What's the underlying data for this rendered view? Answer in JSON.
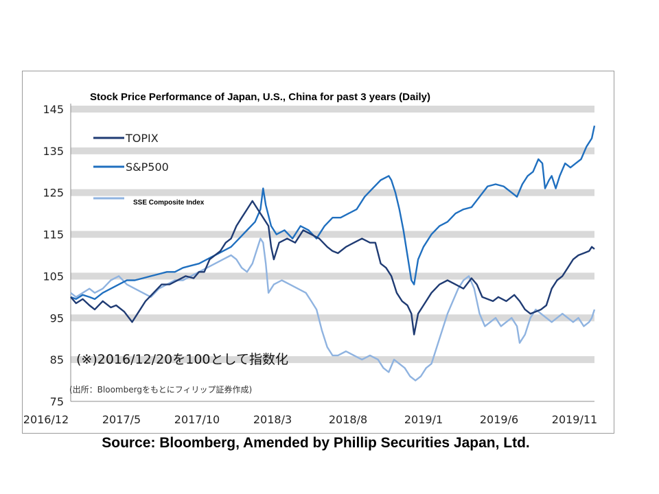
{
  "source_caption": "Source: Bloomberg, Amended by Phillip Securities Japan, Ltd.",
  "chart_data": {
    "type": "line",
    "title": "Stock Price Performance of Japan, U.S., China for past 3 years (Daily)",
    "xlabel": "",
    "ylabel": "",
    "ylim": [
      75,
      145
    ],
    "yticks": [
      "145",
      "135",
      "125",
      "115",
      "105",
      "95",
      "85",
      "75"
    ],
    "xticks": [
      "2016/12",
      "2017/5",
      "2017/10",
      "2018/3",
      "2018/8",
      "2019/1",
      "2019/6",
      "2019/11"
    ],
    "grid": "horizontal bands",
    "legend_position": "top-left",
    "note_main": "(※)2016/12/20を100として指数化",
    "note_source": "(出所：Bloombergをもとにフィリップ証券作成)",
    "series": [
      {
        "name": "TOPIX",
        "color": "#1f3b73",
        "points": [
          [
            0,
            100
          ],
          [
            0.2,
            98.5
          ],
          [
            0.45,
            99.5
          ],
          [
            0.7,
            98
          ],
          [
            0.9,
            97
          ],
          [
            1.2,
            99
          ],
          [
            1.5,
            97.5
          ],
          [
            1.7,
            98
          ],
          [
            2,
            96.5
          ],
          [
            2.3,
            94
          ],
          [
            2.5,
            96
          ],
          [
            2.8,
            99
          ],
          [
            3.1,
            101
          ],
          [
            3.4,
            103
          ],
          [
            3.7,
            103
          ],
          [
            4,
            104
          ],
          [
            4.3,
            105
          ],
          [
            4.6,
            104.5
          ],
          [
            4.8,
            106
          ],
          [
            5,
            106
          ],
          [
            5.2,
            109
          ],
          [
            5.4,
            110
          ],
          [
            5.6,
            111
          ],
          [
            5.8,
            113
          ],
          [
            6,
            114
          ],
          [
            6.2,
            117
          ],
          [
            6.4,
            119
          ],
          [
            6.6,
            121
          ],
          [
            6.8,
            123
          ],
          [
            7,
            121
          ],
          [
            7.2,
            119
          ],
          [
            7.4,
            117
          ],
          [
            7.5,
            112
          ],
          [
            7.6,
            109
          ],
          [
            7.8,
            113
          ],
          [
            8.1,
            114
          ],
          [
            8.4,
            113
          ],
          [
            8.7,
            116
          ],
          [
            9,
            115
          ],
          [
            9.3,
            114
          ],
          [
            9.6,
            112
          ],
          [
            9.8,
            111
          ],
          [
            10,
            110.5
          ],
          [
            10.3,
            112
          ],
          [
            10.6,
            113
          ],
          [
            10.9,
            114
          ],
          [
            11.2,
            113
          ],
          [
            11.4,
            113
          ],
          [
            11.6,
            108
          ],
          [
            11.8,
            107
          ],
          [
            12,
            105
          ],
          [
            12.2,
            101
          ],
          [
            12.4,
            99
          ],
          [
            12.6,
            98
          ],
          [
            12.75,
            96
          ],
          [
            12.85,
            91
          ],
          [
            13,
            96
          ],
          [
            13.2,
            98
          ],
          [
            13.5,
            101
          ],
          [
            13.8,
            103
          ],
          [
            14.1,
            104
          ],
          [
            14.4,
            103
          ],
          [
            14.7,
            102
          ],
          [
            15,
            104.5
          ],
          [
            15.2,
            103
          ],
          [
            15.4,
            100
          ],
          [
            15.6,
            99.5
          ],
          [
            15.8,
            99
          ],
          [
            16,
            100
          ],
          [
            16.3,
            99
          ],
          [
            16.6,
            100.5
          ],
          [
            16.8,
            99
          ],
          [
            17,
            97
          ],
          [
            17.2,
            96
          ],
          [
            17.4,
            96.5
          ],
          [
            17.6,
            97
          ],
          [
            17.8,
            98
          ],
          [
            18,
            102
          ],
          [
            18.2,
            104
          ],
          [
            18.4,
            105
          ],
          [
            18.6,
            107
          ],
          [
            18.8,
            109
          ],
          [
            19,
            110
          ],
          [
            19.2,
            110.5
          ],
          [
            19.4,
            111
          ],
          [
            19.5,
            112
          ],
          [
            19.6,
            111.5
          ]
        ]
      },
      {
        "name": "S&P500",
        "color": "#1f6fbf",
        "points": [
          [
            0,
            100
          ],
          [
            0.2,
            99.5
          ],
          [
            0.45,
            100.5
          ],
          [
            0.7,
            100
          ],
          [
            0.9,
            99.5
          ],
          [
            1.2,
            101
          ],
          [
            1.5,
            102
          ],
          [
            1.8,
            103
          ],
          [
            2.1,
            104
          ],
          [
            2.4,
            104
          ],
          [
            2.7,
            104.5
          ],
          [
            3,
            105
          ],
          [
            3.3,
            105.5
          ],
          [
            3.6,
            106
          ],
          [
            3.9,
            106
          ],
          [
            4.2,
            107
          ],
          [
            4.5,
            107.5
          ],
          [
            4.8,
            108
          ],
          [
            5.1,
            109
          ],
          [
            5.4,
            110
          ],
          [
            5.7,
            111
          ],
          [
            6,
            112
          ],
          [
            6.3,
            114
          ],
          [
            6.6,
            116
          ],
          [
            6.9,
            118
          ],
          [
            7.1,
            121
          ],
          [
            7.2,
            126
          ],
          [
            7.3,
            122
          ],
          [
            7.5,
            117
          ],
          [
            7.7,
            115
          ],
          [
            8,
            116
          ],
          [
            8.3,
            114
          ],
          [
            8.6,
            117
          ],
          [
            8.9,
            116
          ],
          [
            9.2,
            114
          ],
          [
            9.5,
            117
          ],
          [
            9.8,
            119
          ],
          [
            10.1,
            119
          ],
          [
            10.4,
            120
          ],
          [
            10.7,
            121
          ],
          [
            11,
            124
          ],
          [
            11.3,
            126
          ],
          [
            11.6,
            128
          ],
          [
            11.9,
            129
          ],
          [
            12,
            128
          ],
          [
            12.15,
            125
          ],
          [
            12.3,
            121
          ],
          [
            12.45,
            116
          ],
          [
            12.6,
            110
          ],
          [
            12.75,
            104
          ],
          [
            12.85,
            103
          ],
          [
            13,
            109
          ],
          [
            13.2,
            112
          ],
          [
            13.5,
            115
          ],
          [
            13.8,
            117
          ],
          [
            14.1,
            118
          ],
          [
            14.4,
            120
          ],
          [
            14.7,
            121
          ],
          [
            15,
            121.5
          ],
          [
            15.3,
            124
          ],
          [
            15.6,
            126.5
          ],
          [
            15.9,
            127
          ],
          [
            16.2,
            126.5
          ],
          [
            16.5,
            125
          ],
          [
            16.7,
            124
          ],
          [
            16.9,
            127
          ],
          [
            17.1,
            129
          ],
          [
            17.3,
            130
          ],
          [
            17.5,
            133
          ],
          [
            17.65,
            132
          ],
          [
            17.75,
            126
          ],
          [
            17.9,
            128
          ],
          [
            18,
            129
          ],
          [
            18.15,
            126
          ],
          [
            18.3,
            129
          ],
          [
            18.5,
            132
          ],
          [
            18.7,
            131
          ],
          [
            18.9,
            132
          ],
          [
            19.1,
            133
          ],
          [
            19.3,
            136
          ],
          [
            19.5,
            138
          ],
          [
            19.6,
            141
          ]
        ]
      },
      {
        "name": "SSE Composite Index",
        "color": "#8fb3e0",
        "points": [
          [
            0,
            101
          ],
          [
            0.2,
            100
          ],
          [
            0.45,
            101
          ],
          [
            0.7,
            102
          ],
          [
            0.9,
            101
          ],
          [
            1.2,
            102
          ],
          [
            1.5,
            104
          ],
          [
            1.8,
            105
          ],
          [
            2.1,
            103
          ],
          [
            2.4,
            102
          ],
          [
            2.7,
            101
          ],
          [
            3,
            100
          ],
          [
            3.3,
            102
          ],
          [
            3.6,
            103
          ],
          [
            3.9,
            104
          ],
          [
            4.2,
            104
          ],
          [
            4.5,
            105
          ],
          [
            4.8,
            106
          ],
          [
            5.1,
            107
          ],
          [
            5.4,
            108
          ],
          [
            5.7,
            109
          ],
          [
            6,
            110
          ],
          [
            6.2,
            109
          ],
          [
            6.4,
            107
          ],
          [
            6.6,
            106
          ],
          [
            6.8,
            108
          ],
          [
            7,
            112
          ],
          [
            7.1,
            114
          ],
          [
            7.2,
            113
          ],
          [
            7.3,
            108
          ],
          [
            7.4,
            101
          ],
          [
            7.6,
            103
          ],
          [
            7.9,
            104
          ],
          [
            8.2,
            103
          ],
          [
            8.5,
            102
          ],
          [
            8.8,
            101
          ],
          [
            9,
            99
          ],
          [
            9.2,
            97
          ],
          [
            9.4,
            92
          ],
          [
            9.6,
            88
          ],
          [
            9.8,
            86
          ],
          [
            10,
            86
          ],
          [
            10.3,
            87
          ],
          [
            10.6,
            86
          ],
          [
            10.9,
            85
          ],
          [
            11.2,
            86
          ],
          [
            11.5,
            85
          ],
          [
            11.7,
            83
          ],
          [
            11.9,
            82
          ],
          [
            12.1,
            85
          ],
          [
            12.3,
            84
          ],
          [
            12.5,
            83
          ],
          [
            12.7,
            81
          ],
          [
            12.9,
            80
          ],
          [
            13.1,
            81
          ],
          [
            13.3,
            83
          ],
          [
            13.5,
            84
          ],
          [
            13.7,
            88
          ],
          [
            13.9,
            92
          ],
          [
            14.1,
            96
          ],
          [
            14.3,
            99
          ],
          [
            14.5,
            102
          ],
          [
            14.7,
            104
          ],
          [
            14.9,
            105
          ],
          [
            15.1,
            102
          ],
          [
            15.3,
            96
          ],
          [
            15.5,
            93
          ],
          [
            15.7,
            94
          ],
          [
            15.9,
            95
          ],
          [
            16.1,
            93
          ],
          [
            16.3,
            94
          ],
          [
            16.5,
            95
          ],
          [
            16.7,
            93
          ],
          [
            16.8,
            89
          ],
          [
            17,
            91
          ],
          [
            17.2,
            95
          ],
          [
            17.4,
            97
          ],
          [
            17.6,
            96
          ],
          [
            17.8,
            95
          ],
          [
            18,
            94
          ],
          [
            18.2,
            95
          ],
          [
            18.4,
            96
          ],
          [
            18.6,
            95
          ],
          [
            18.8,
            94
          ],
          [
            19,
            95
          ],
          [
            19.2,
            93
          ],
          [
            19.4,
            94
          ],
          [
            19.5,
            95
          ],
          [
            19.6,
            97
          ]
        ]
      }
    ]
  }
}
